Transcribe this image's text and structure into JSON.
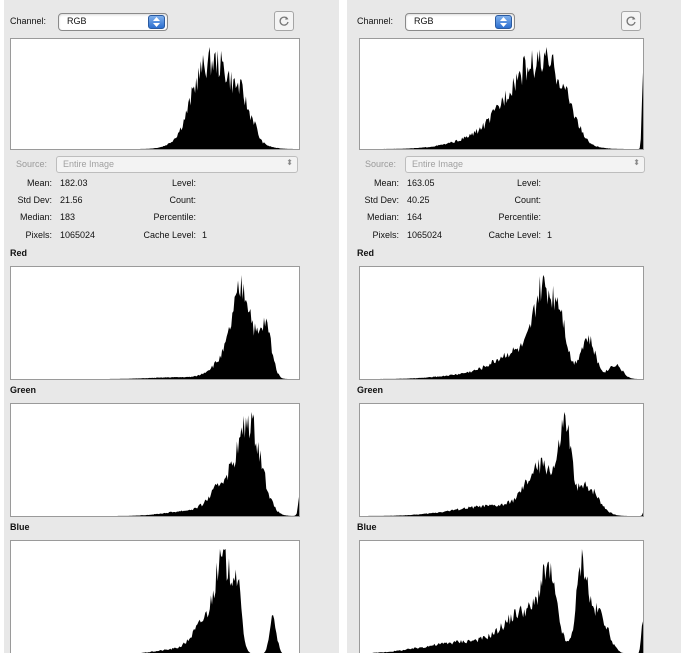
{
  "panels": [
    {
      "channel_label": "Channel:",
      "channel_value": "RGB",
      "source_label": "Source:",
      "source_value": "Entire Image",
      "stats": {
        "mean_label": "Mean:",
        "mean": "182.03",
        "stddev_label": "Std Dev:",
        "stddev": "21.56",
        "median_label": "Median:",
        "median": "183",
        "pixels_label": "Pixels:",
        "pixels": "1065024",
        "level_label": "Level:",
        "count_label": "Count:",
        "percentile_label": "Percentile:",
        "cache_label": "Cache Level:",
        "cache": "1"
      },
      "red_label": "Red",
      "green_label": "Green",
      "blue_label": "Blue"
    },
    {
      "channel_label": "Channel:",
      "channel_value": "RGB",
      "source_label": "Source:",
      "source_value": "Entire Image",
      "stats": {
        "mean_label": "Mean:",
        "mean": "163.05",
        "stddev_label": "Std Dev:",
        "stddev": "40.25",
        "median_label": "Median:",
        "median": "164",
        "pixels_label": "Pixels:",
        "pixels": "1065024",
        "level_label": "Level:",
        "count_label": "Count:",
        "percentile_label": "Percentile:",
        "cache_label": "Cache Level:",
        "cache": "1"
      },
      "red_label": "Red",
      "green_label": "Green",
      "blue_label": "Blue"
    }
  ],
  "icons": {
    "stepper": "up-down-arrows-icon",
    "refresh": "refresh-icon",
    "dropdown": "up-down-arrows-icon"
  },
  "colors": {
    "panel_bg": "#e8e8e8",
    "histogram_fill": "#000000",
    "accent": "#2b6fd0"
  }
}
